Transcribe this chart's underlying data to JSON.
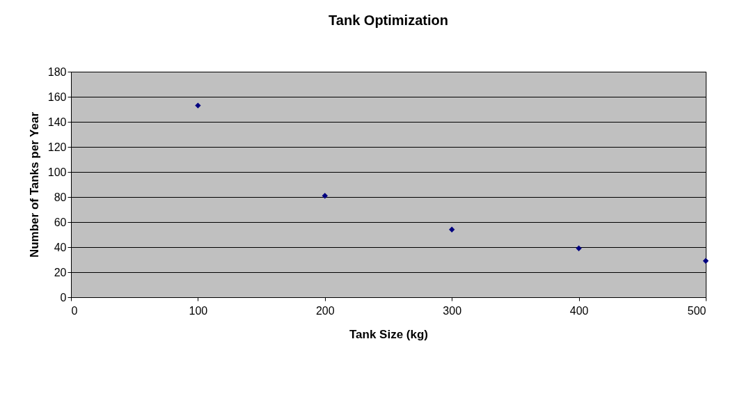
{
  "chart_data": {
    "type": "scatter",
    "title": "Tank Optimization",
    "xlabel": "Tank Size (kg)",
    "ylabel": "Number of Tanks per Year",
    "x": [
      100,
      200,
      300,
      400,
      500
    ],
    "series": [
      {
        "color": "#000080",
        "values": [
          153,
          81,
          54,
          39,
          29
        ]
      }
    ],
    "xlim": [
      0,
      500
    ],
    "xticks": [
      0,
      100,
      200,
      300,
      400,
      500
    ],
    "ylim": [
      0,
      180
    ],
    "yticks": [
      0,
      20,
      40,
      60,
      80,
      100,
      120,
      140,
      160,
      180
    ],
    "grid": "y",
    "marker": "diamond"
  }
}
